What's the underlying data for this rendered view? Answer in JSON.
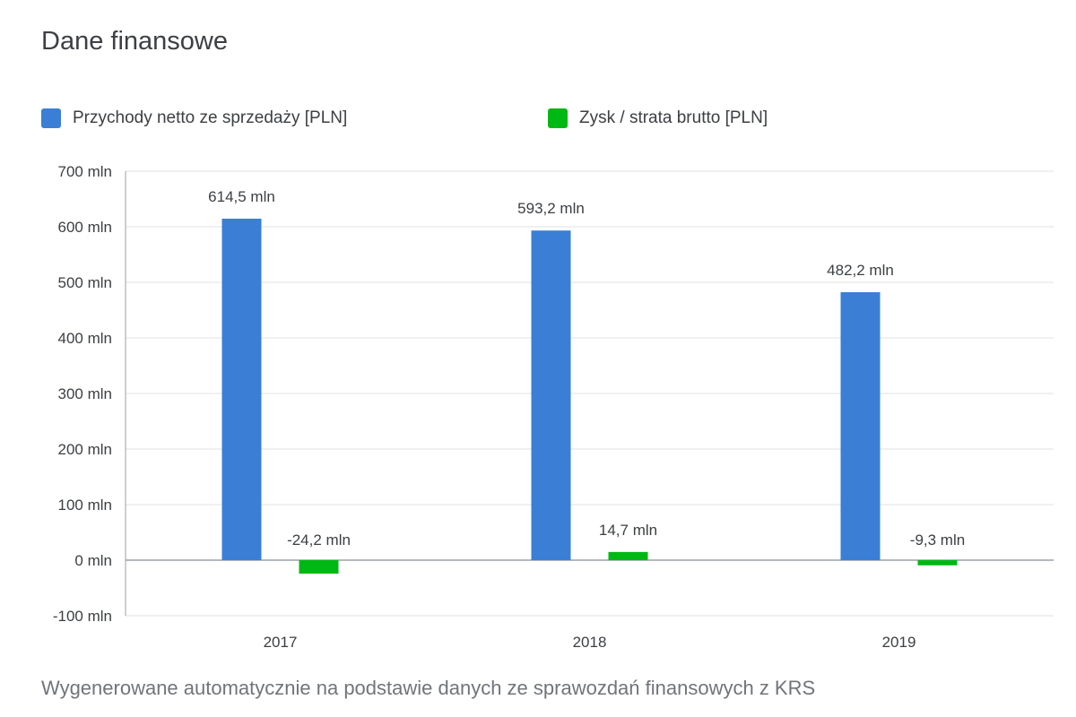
{
  "title": "Dane finansowe",
  "footer_note": "Wygenerowane automatycznie na podstawie danych ze sprawozdań finansowych z KRS",
  "chart_data": {
    "type": "bar",
    "title": "",
    "xlabel": "",
    "ylabel": "",
    "categories": [
      "2017",
      "2018",
      "2019"
    ],
    "ylim": [
      -100,
      700
    ],
    "yticks": [
      -100,
      0,
      100,
      200,
      300,
      400,
      500,
      600,
      700
    ],
    "ytick_labels": [
      "-100 mln",
      "0 mln",
      "100 mln",
      "200 mln",
      "300 mln",
      "400 mln",
      "500 mln",
      "600 mln",
      "700 mln"
    ],
    "grid": true,
    "legend_position": "top-left",
    "series": [
      {
        "name": "Przychody netto ze sprzedaży [PLN]",
        "color": "#3a7fd5",
        "values": [
          614.5,
          593.2,
          482.2
        ],
        "labels": [
          "614,5 mln",
          "593,2 mln",
          "482,2 mln"
        ]
      },
      {
        "name": "Zysk / strata brutto [PLN]",
        "color": "#00b814",
        "values": [
          -24.2,
          14.7,
          -9.3
        ],
        "labels": [
          "-24,2 mln",
          "14,7 mln",
          "-9,3 mln"
        ]
      }
    ]
  }
}
